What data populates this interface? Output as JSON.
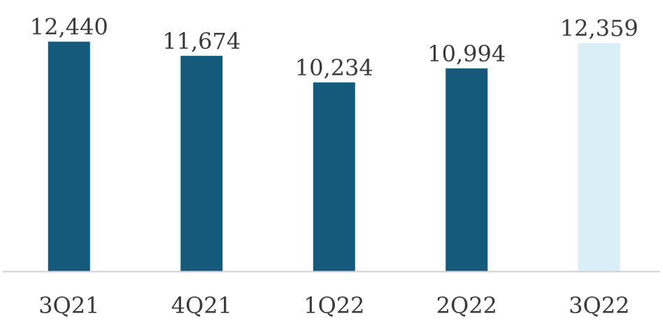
{
  "chart_data": {
    "type": "bar",
    "title": "",
    "xlabel": "",
    "ylabel": "",
    "categories": [
      "3Q21",
      "4Q21",
      "1Q22",
      "2Q22",
      "3Q22"
    ],
    "values": [
      12440,
      11674,
      10234,
      10994,
      12359
    ],
    "value_labels": [
      "12,440",
      "11,674",
      "10,234",
      "10,994",
      "12,359"
    ],
    "ylim": [
      0,
      13000
    ],
    "grid": false,
    "legend": "none",
    "colors": {
      "bar": "#155a7a",
      "highlight_bar": "#daeef8",
      "axis": "#d0d0d0",
      "text": "#3a3a3a"
    },
    "highlight_index": 4
  }
}
